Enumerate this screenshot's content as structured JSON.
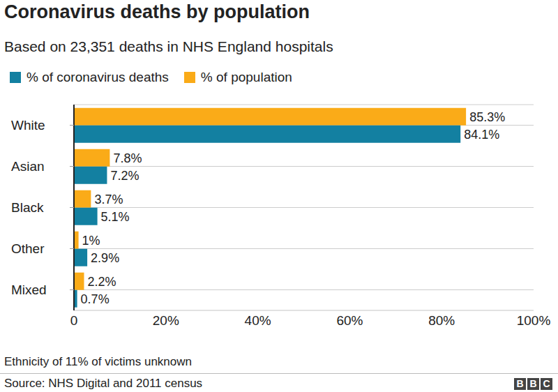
{
  "chart_data": {
    "type": "bar",
    "orientation": "horizontal",
    "title": "Coronavirus deaths by population",
    "subtitle": "Based on 23,351 deaths in NHS England hospitals",
    "categories": [
      "White",
      "Asian",
      "Black",
      "Other",
      "Mixed"
    ],
    "series": [
      {
        "name": "% of coronavirus deaths",
        "color": "#1380a1",
        "values": [
          84.1,
          7.2,
          5.1,
          2.9,
          0.7
        ],
        "value_labels": [
          "84.1%",
          "7.2%",
          "5.1%",
          "2.9%",
          "0.7%"
        ]
      },
      {
        "name": "% of population",
        "color": "#faab18",
        "values": [
          85.3,
          7.8,
          3.7,
          1,
          2.2
        ],
        "value_labels": [
          "85.3%",
          "7.8%",
          "3.7%",
          "1%",
          "2.2%"
        ]
      }
    ],
    "xlim": [
      0,
      100
    ],
    "xticks": [
      0,
      {
        "value": 20,
        "label": "20%"
      },
      {
        "value": 40,
        "label": "40%"
      },
      {
        "value": 60,
        "label": "60%"
      },
      {
        "value": 80,
        "label": "80%"
      },
      {
        "value": 100,
        "label": "100%"
      }
    ],
    "grid": true,
    "data_labels": true,
    "legend": "top",
    "annotations": [
      "Ethnicity of 11% of victims unknown"
    ],
    "source": "Source: NHS Digital and 2011 census",
    "logo": "BBC"
  }
}
